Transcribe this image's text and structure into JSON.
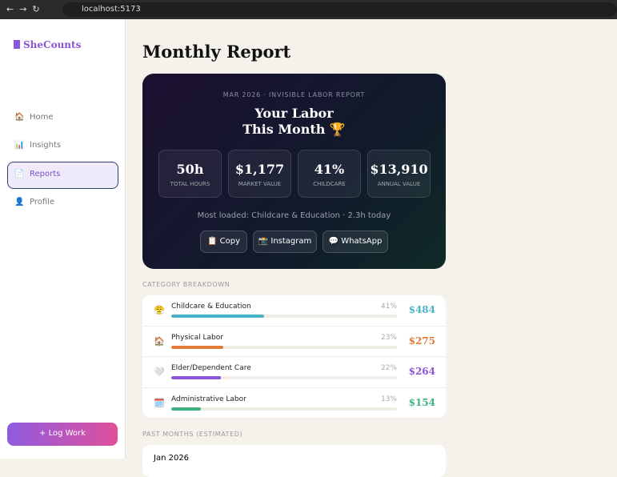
{
  "browser": {
    "url": "localhost:5173"
  },
  "sidebar": {
    "logo": "SheCounts",
    "nav": [
      {
        "icon": "🏠",
        "label": "Home"
      },
      {
        "icon": "📊",
        "label": "Insights"
      },
      {
        "icon": "📄",
        "label": "Reports"
      },
      {
        "icon": "👤",
        "label": "Profile"
      }
    ],
    "button": "+ Log Work"
  },
  "main": {
    "title": "Monthly Report",
    "report": {
      "eyebrow": "MAR 2026 · INVISIBLE LABOR REPORT",
      "heading1": "Your Labor",
      "heading2": "This Month 🏆",
      "stats": [
        {
          "value": "50h",
          "label": "TOTAL HOURS"
        },
        {
          "value": "$1,177",
          "label": "MARKET VALUE"
        },
        {
          "value": "41%",
          "label": "CHILDCARE"
        },
        {
          "value": "$13,910",
          "label": "ANNUAL VALUE"
        }
      ],
      "note": "Most loaded: Childcare & Education · 2.3h today",
      "buttons": [
        "📋 Copy",
        "📸 Instagram",
        "💬 WhatsApp"
      ]
    },
    "breakdown_title": "CATEGORY BREAKDOWN",
    "categories": [
      {
        "icon": "😤",
        "name": "Childcare & Education",
        "pct": "41%",
        "amount": "$484",
        "color": "#4bb3c8"
      },
      {
        "icon": "🏠",
        "name": "Physical Labor",
        "pct": "23%",
        "amount": "$275",
        "color": "#e07b3a"
      },
      {
        "icon": "🤍",
        "name": "Elder/Dependent Care",
        "pct": "22%",
        "amount": "$264",
        "color": "#8a55d6"
      },
      {
        "icon": "🗓️",
        "name": "Administrative Labor",
        "pct": "13%",
        "amount": "$154",
        "color": "#3bb27f"
      }
    ],
    "past_title": "PAST MONTHS (ESTIMATED)",
    "past": [
      "Jan 2026"
    ]
  }
}
